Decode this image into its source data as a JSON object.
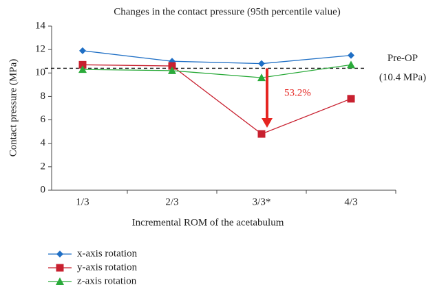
{
  "chart_data": {
    "type": "line",
    "title": "Changes in the contact pressure (95th percentile value)",
    "x_label": "Incremental ROM of the acetabulum",
    "y_label": "Contact pressure (MPa)",
    "categories": [
      "1/3",
      "2/3",
      "3/3*",
      "4/3"
    ],
    "series": [
      {
        "name": "x-axis rotation",
        "color": "#1f6fc5",
        "marker": "diamond",
        "values": [
          11.9,
          11.0,
          10.8,
          11.5
        ]
      },
      {
        "name": "y-axis rotation",
        "color": "#c8202f",
        "marker": "square",
        "values": [
          10.7,
          10.6,
          4.8,
          7.8
        ]
      },
      {
        "name": "z-axis rotation",
        "color": "#2aaa3a",
        "marker": "triangle",
        "values": [
          10.3,
          10.2,
          9.6,
          10.7
        ]
      }
    ],
    "ylim": [
      0,
      14
    ],
    "yticks": [
      0,
      2,
      4,
      6,
      8,
      10,
      12,
      14
    ],
    "reference_line": {
      "value": 10.4,
      "label": "Pre-OP",
      "sublabel": "(10.4 MPa)"
    },
    "annotation": "53.2%",
    "legend": "bottom-left",
    "grid": false
  }
}
